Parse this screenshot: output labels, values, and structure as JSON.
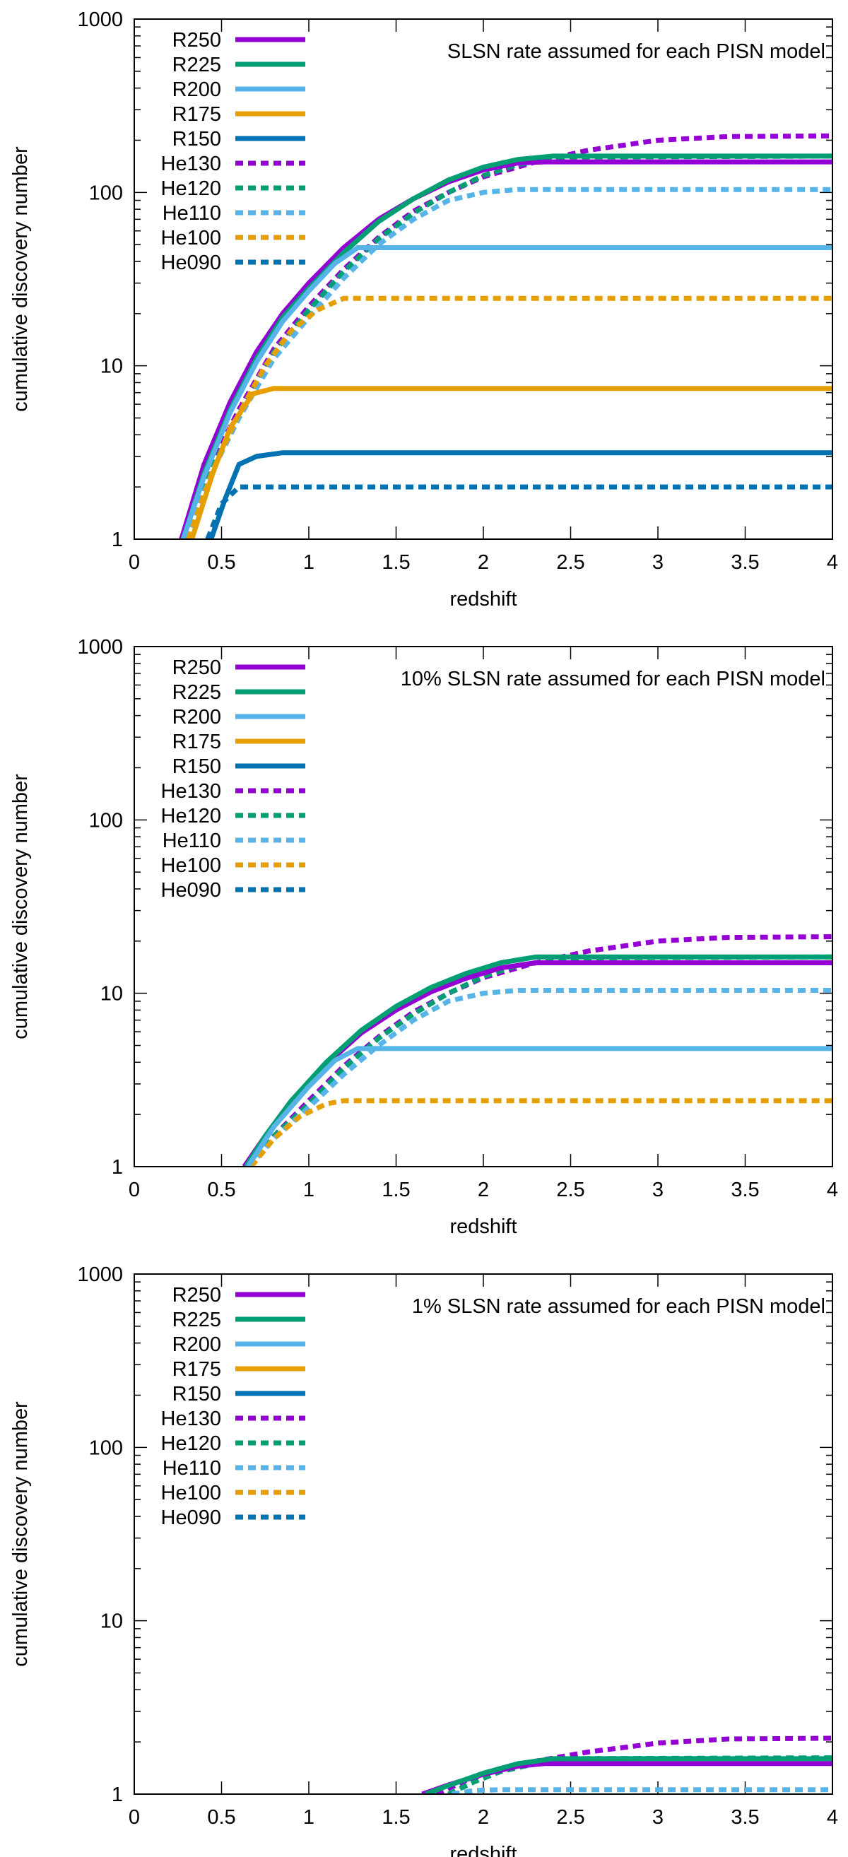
{
  "chart_data": [
    {
      "type": "line",
      "yscale": "log",
      "annotation": "SLSN rate assumed for each PISN model",
      "xlabel": "redshift",
      "ylabel": "cumulative discovery number",
      "xlim": [
        0,
        4
      ],
      "ylim": [
        1,
        1000
      ],
      "xticks": [
        "0",
        "0.5",
        "1",
        "1.5",
        "2",
        "2.5",
        "3",
        "3.5",
        "4"
      ],
      "yticks": [
        "1",
        "10",
        "100",
        "1000"
      ],
      "legend_position": "top-left",
      "series": [
        {
          "name": "R250",
          "color": "#9400d3",
          "style": "solid",
          "x": [
            0.27,
            0.4,
            0.55,
            0.7,
            0.85,
            1.0,
            1.2,
            1.4,
            1.6,
            1.8,
            2.0,
            2.2,
            2.35,
            4.0
          ],
          "values": [
            1,
            2.7,
            6.2,
            12,
            20,
            30,
            48,
            70,
            92,
            115,
            135,
            148,
            150,
            150
          ]
        },
        {
          "name": "R225",
          "color": "#009e73",
          "style": "solid",
          "x": [
            0.28,
            0.4,
            0.55,
            0.7,
            0.85,
            1.0,
            1.2,
            1.4,
            1.6,
            1.8,
            2.0,
            2.2,
            2.4,
            4.0
          ],
          "values": [
            1,
            2.4,
            5.6,
            11,
            19,
            28,
            45,
            68,
            92,
            118,
            140,
            155,
            162,
            162
          ]
        },
        {
          "name": "R200",
          "color": "#56b4e9",
          "style": "solid",
          "x": [
            0.28,
            0.4,
            0.55,
            0.7,
            0.85,
            1.0,
            1.15,
            1.28,
            4.0
          ],
          "values": [
            1,
            2.3,
            5.4,
            10.5,
            18,
            27,
            39,
            48,
            48
          ]
        },
        {
          "name": "R175",
          "color": "#e69f00",
          "style": "solid",
          "x": [
            0.33,
            0.45,
            0.55,
            0.68,
            0.8,
            4.0
          ],
          "values": [
            1,
            2.4,
            4.4,
            6.9,
            7.4,
            7.4
          ]
        },
        {
          "name": "R150",
          "color": "#0072b2",
          "style": "solid",
          "x": [
            0.44,
            0.52,
            0.6,
            0.7,
            0.85,
            4.0
          ],
          "values": [
            1,
            1.7,
            2.7,
            3.0,
            3.15,
            3.15
          ]
        },
        {
          "name": "He130",
          "color": "#9400d3",
          "style": "dotted",
          "x": [
            0.3,
            0.45,
            0.6,
            0.8,
            1.0,
            1.2,
            1.4,
            1.6,
            1.8,
            2.0,
            2.3,
            2.6,
            3.0,
            3.4,
            4.0
          ],
          "values": [
            1,
            2.8,
            5.6,
            12.5,
            22,
            36,
            55,
            78,
            100,
            123,
            150,
            175,
            200,
            210,
            212
          ]
        },
        {
          "name": "He120",
          "color": "#009e73",
          "style": "dotted",
          "x": [
            0.3,
            0.45,
            0.6,
            0.8,
            1.0,
            1.2,
            1.4,
            1.6,
            1.8,
            2.0,
            2.2,
            2.5,
            4.0
          ],
          "values": [
            1,
            2.6,
            5.3,
            12,
            21,
            35,
            54,
            76,
            100,
            125,
            145,
            160,
            162
          ]
        },
        {
          "name": "He110",
          "color": "#56b4e9",
          "style": "dotted",
          "x": [
            0.3,
            0.45,
            0.6,
            0.8,
            1.0,
            1.2,
            1.4,
            1.6,
            1.8,
            2.0,
            2.2,
            4.0
          ],
          "values": [
            1,
            2.5,
            5.0,
            11,
            19,
            32,
            50,
            70,
            90,
            100,
            104,
            104
          ]
        },
        {
          "name": "He100",
          "color": "#e69f00",
          "style": "dotted",
          "x": [
            0.31,
            0.45,
            0.6,
            0.75,
            0.9,
            1.05,
            1.2,
            4.0
          ],
          "values": [
            1,
            2.5,
            5.3,
            10,
            16,
            21,
            24.5,
            24.5
          ]
        },
        {
          "name": "He090",
          "color": "#0072b2",
          "style": "dotted",
          "x": [
            0.42,
            0.5,
            0.6,
            4.0
          ],
          "values": [
            1,
            1.6,
            2.0,
            2.0
          ]
        }
      ]
    },
    {
      "type": "line",
      "yscale": "log",
      "annotation": "10% SLSN rate assumed for each PISN model",
      "xlabel": "redshift",
      "ylabel": "cumulative discovery number",
      "xlim": [
        0,
        4
      ],
      "ylim": [
        1,
        1000
      ],
      "xticks": [
        "0",
        "0.5",
        "1",
        "1.5",
        "2",
        "2.5",
        "3",
        "3.5",
        "4"
      ],
      "yticks": [
        "1",
        "10",
        "100",
        "1000"
      ],
      "legend_position": "top-left",
      "series": [
        {
          "name": "R250",
          "color": "#9400d3",
          "style": "solid",
          "x": [
            0.63,
            0.75,
            0.9,
            1.1,
            1.3,
            1.5,
            1.7,
            1.9,
            2.1,
            2.3,
            4.0
          ],
          "values": [
            1,
            1.5,
            2.4,
            3.9,
            5.9,
            8.0,
            10.2,
            12.2,
            14,
            15,
            15
          ]
        },
        {
          "name": "R225",
          "color": "#009e73",
          "style": "solid",
          "x": [
            0.64,
            0.75,
            0.9,
            1.1,
            1.3,
            1.5,
            1.7,
            1.9,
            2.1,
            2.3,
            4.0
          ],
          "values": [
            1,
            1.5,
            2.4,
            4.0,
            6.1,
            8.4,
            10.8,
            13,
            15,
            16.2,
            16.2
          ]
        },
        {
          "name": "R200",
          "color": "#56b4e9",
          "style": "solid",
          "x": [
            0.65,
            0.8,
            1.0,
            1.15,
            1.28,
            4.0
          ],
          "values": [
            1,
            1.7,
            2.9,
            4.1,
            4.8,
            4.8
          ]
        },
        {
          "name": "He130",
          "color": "#9400d3",
          "style": "dotted",
          "x": [
            0.66,
            0.8,
            1.0,
            1.2,
            1.4,
            1.6,
            1.8,
            2.0,
            2.3,
            2.6,
            3.0,
            3.4,
            4.0
          ],
          "values": [
            1,
            1.5,
            2.4,
            3.8,
            5.6,
            7.8,
            10,
            12.3,
            15,
            17.5,
            20,
            21,
            21.2
          ]
        },
        {
          "name": "He120",
          "color": "#009e73",
          "style": "dotted",
          "x": [
            0.66,
            0.8,
            1.0,
            1.2,
            1.4,
            1.6,
            1.8,
            2.0,
            2.2,
            2.5,
            4.0
          ],
          "values": [
            1,
            1.5,
            2.3,
            3.7,
            5.5,
            7.6,
            10,
            12.5,
            14.5,
            16,
            16.2
          ]
        },
        {
          "name": "He110",
          "color": "#56b4e9",
          "style": "dotted",
          "x": [
            0.66,
            0.8,
            1.0,
            1.2,
            1.4,
            1.6,
            1.8,
            2.0,
            2.2,
            4.0
          ],
          "values": [
            1,
            1.45,
            2.2,
            3.4,
            5.0,
            7.0,
            9.0,
            10,
            10.4,
            10.4
          ]
        },
        {
          "name": "He100",
          "color": "#e69f00",
          "style": "dotted",
          "x": [
            0.67,
            0.8,
            0.95,
            1.1,
            1.2,
            4.0
          ],
          "values": [
            1,
            1.45,
            1.95,
            2.3,
            2.4,
            2.4
          ]
        }
      ],
      "legend_only": [
        {
          "name": "R175",
          "color": "#e69f00",
          "style": "solid"
        },
        {
          "name": "R150",
          "color": "#0072b2",
          "style": "solid"
        },
        {
          "name": "He090",
          "color": "#0072b2",
          "style": "dotted"
        }
      ]
    },
    {
      "type": "line",
      "yscale": "log",
      "annotation": "1% SLSN rate assumed for each PISN model",
      "xlabel": "redshift",
      "ylabel": "cumulative discovery number",
      "xlim": [
        0,
        4
      ],
      "ylim": [
        1,
        1000
      ],
      "xticks": [
        "0",
        "0.5",
        "1",
        "1.5",
        "2",
        "2.5",
        "3",
        "3.5",
        "4"
      ],
      "yticks": [
        "1",
        "10",
        "100",
        "1000"
      ],
      "legend_position": "top-left",
      "series": [
        {
          "name": "R250",
          "color": "#9400d3",
          "style": "solid",
          "x": [
            1.65,
            1.8,
            2.0,
            2.2,
            2.35,
            4.0
          ],
          "values": [
            1,
            1.13,
            1.3,
            1.45,
            1.5,
            1.5
          ]
        },
        {
          "name": "R225",
          "color": "#009e73",
          "style": "solid",
          "x": [
            1.67,
            1.8,
            2.0,
            2.2,
            2.4,
            4.0
          ],
          "values": [
            1,
            1.12,
            1.32,
            1.5,
            1.6,
            1.6
          ]
        },
        {
          "name": "He130",
          "color": "#9400d3",
          "style": "dotted",
          "x": [
            1.73,
            1.9,
            2.1,
            2.3,
            2.6,
            3.0,
            3.4,
            4.0
          ],
          "values": [
            1,
            1.2,
            1.4,
            1.55,
            1.75,
            1.97,
            2.08,
            2.1
          ]
        },
        {
          "name": "He120",
          "color": "#009e73",
          "style": "dotted",
          "x": [
            1.8,
            1.95,
            2.1,
            2.3,
            2.5,
            4.0
          ],
          "values": [
            1,
            1.18,
            1.35,
            1.5,
            1.6,
            1.62
          ]
        },
        {
          "name": "He110",
          "color": "#56b4e9",
          "style": "dotted",
          "x": [
            1.82,
            1.95,
            2.1,
            4.0
          ],
          "values": [
            1,
            1.05,
            1.06,
            1.06
          ]
        }
      ],
      "legend_only": [
        {
          "name": "R200",
          "color": "#56b4e9",
          "style": "solid"
        },
        {
          "name": "R175",
          "color": "#e69f00",
          "style": "solid"
        },
        {
          "name": "R150",
          "color": "#0072b2",
          "style": "solid"
        },
        {
          "name": "He100",
          "color": "#e69f00",
          "style": "dotted"
        },
        {
          "name": "He090",
          "color": "#0072b2",
          "style": "dotted"
        }
      ]
    }
  ]
}
